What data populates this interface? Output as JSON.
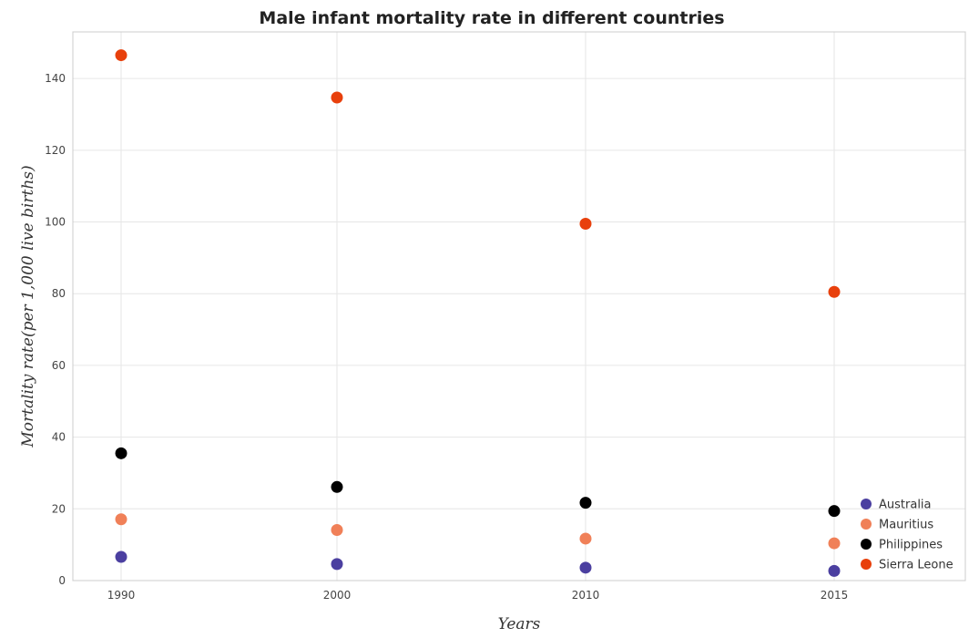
{
  "chart_data": {
    "type": "scatter",
    "title": "Male infant mortality rate in different countries",
    "xlabel": "Years",
    "ylabel": "Mortality rate(per 1,000 live births)",
    "categories": [
      "1990",
      "2000",
      "2010",
      "2015"
    ],
    "ylim": [
      0,
      153
    ],
    "yticks": [
      0,
      20,
      40,
      60,
      80,
      100,
      120,
      140
    ],
    "grid": true,
    "legend_position": "bottom-right",
    "series": [
      {
        "name": "Australia",
        "color": "#4b3fa0",
        "values": [
          6.6,
          4.6,
          3.6,
          2.7
        ]
      },
      {
        "name": "Mauritius",
        "color": "#f08058",
        "values": [
          17.1,
          14.1,
          11.7,
          10.4
        ]
      },
      {
        "name": "Philippines",
        "color": "#000000",
        "values": [
          35.5,
          26.1,
          21.7,
          19.4
        ]
      },
      {
        "name": "Sierra Leone",
        "color": "#e8400c",
        "values": [
          146.5,
          134.7,
          99.5,
          80.5
        ]
      }
    ]
  }
}
